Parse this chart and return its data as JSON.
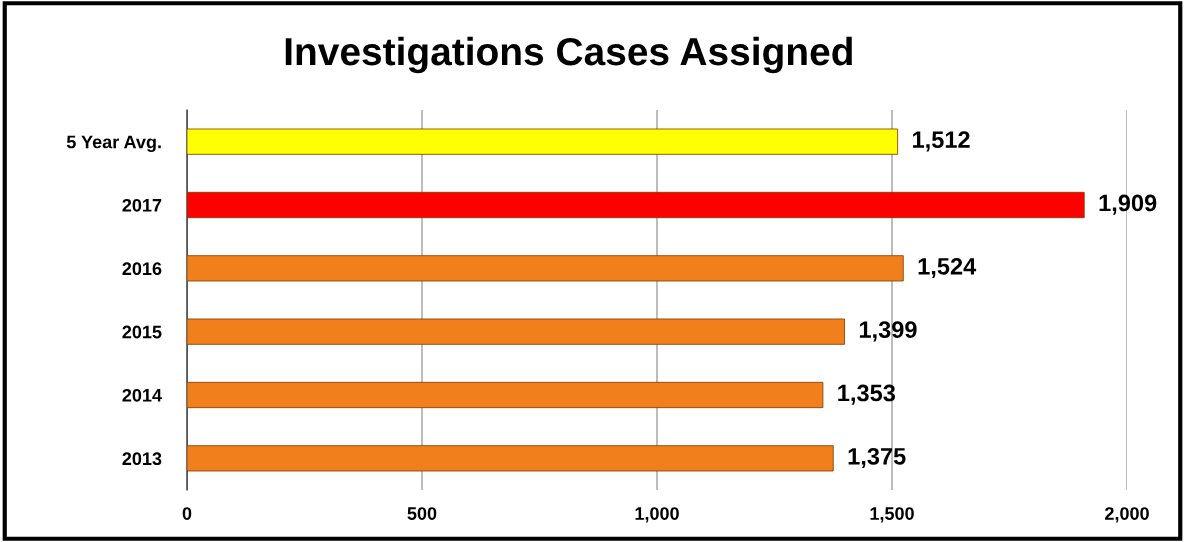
{
  "chart_data": {
    "type": "bar",
    "orientation": "horizontal",
    "title": "Investigations Cases Assigned",
    "categories": [
      "5 Year Avg.",
      "2017",
      "2016",
      "2015",
      "2014",
      "2013"
    ],
    "values": [
      1512,
      1909,
      1524,
      1399,
      1353,
      1375
    ],
    "colors": [
      "#ffff00",
      "#ff0000",
      "#f07f1c",
      "#f07f1c",
      "#f07f1c",
      "#f07f1c"
    ],
    "value_labels": [
      "1,512",
      "1,909",
      "1,524",
      "1,399",
      "1,353",
      "1,375"
    ],
    "xlim": [
      0,
      2000
    ],
    "xticks": [
      0,
      500,
      {
        "value": 1000,
        "label": "1,000"
      },
      {
        "value": 1500,
        "label": "1,500"
      },
      {
        "value": 2000,
        "label": "2,000"
      }
    ],
    "grid": "x",
    "legend": false
  }
}
